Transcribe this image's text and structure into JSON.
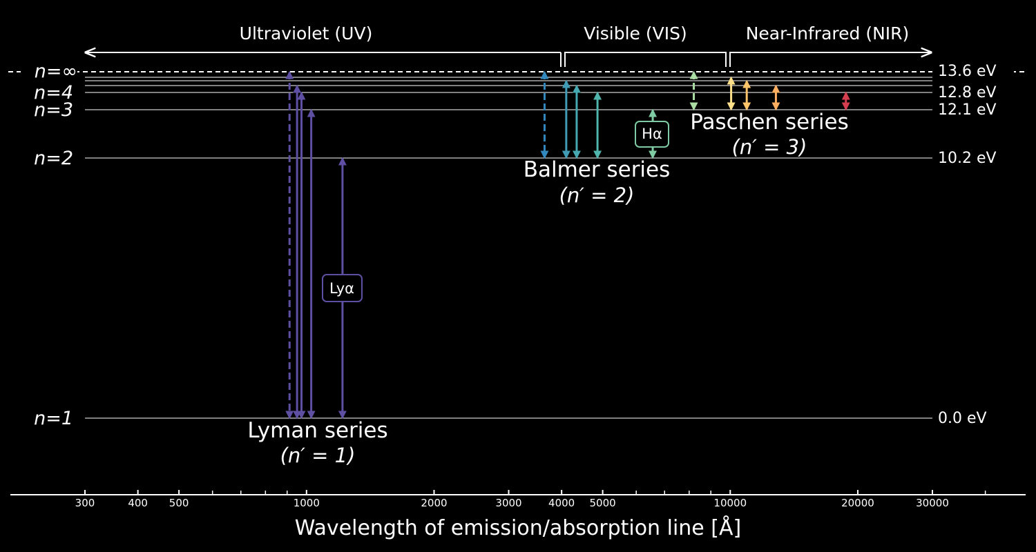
{
  "regions": [
    {
      "label": "Ultraviolet (UV)",
      "from": 300,
      "to": 4000
    },
    {
      "label": "Visible (VIS)",
      "from": 4000,
      "to": 10000
    },
    {
      "label": "Near-Infrared (NIR)",
      "from": 10000,
      "to": 30000
    }
  ],
  "levels": {
    "n_inf": {
      "label": "n=∞",
      "energy": "13.6 eV"
    },
    "n4": {
      "label": "n=4",
      "energy": "12.8 eV"
    },
    "n3": {
      "label": "n=3",
      "energy": "12.1 eV"
    },
    "n2": {
      "label": "n=2",
      "energy": "10.2 eV"
    },
    "n1": {
      "label": "n=1",
      "energy": "0.0 eV"
    }
  },
  "series": {
    "lyman": {
      "name": "Lyman series",
      "sub": "(n′ = 1)"
    },
    "balmer": {
      "name": "Balmer series",
      "sub": "(n′ = 2)"
    },
    "paschen": {
      "name": "Paschen series",
      "sub": "(n′ = 3)"
    }
  },
  "callouts": {
    "ly_alpha": "Lyα",
    "h_alpha": "Hα"
  },
  "axis": {
    "xlabel": "Wavelength of emission/absorption line [Å]",
    "tick_labels": [
      "300",
      "400",
      "500",
      "1000",
      "2000",
      "3000",
      "4000",
      "5000",
      "10000",
      "20000",
      "30000"
    ]
  },
  "chart_data": {
    "type": "energy-level diagram",
    "x_scale": "log",
    "xlim": [
      300,
      30000
    ],
    "lines": [
      {
        "series": "Lyman",
        "wavelength": 912,
        "from_n": "∞",
        "to_n": 1,
        "style": "dashed",
        "color": "#5e4fa2"
      },
      {
        "series": "Lyman",
        "wavelength": 950,
        "from_n": 5,
        "to_n": 1,
        "color": "#5e4fa2"
      },
      {
        "series": "Lyman",
        "wavelength": 973,
        "from_n": 4,
        "to_n": 1,
        "color": "#5e4fa2"
      },
      {
        "series": "Lyman",
        "wavelength": 1026,
        "from_n": 3,
        "to_n": 1,
        "color": "#5e4fa2"
      },
      {
        "series": "Lyman",
        "wavelength": 1216,
        "from_n": 2,
        "to_n": 1,
        "color": "#5e4fa2"
      },
      {
        "series": "Balmer",
        "wavelength": 3646,
        "from_n": "∞",
        "to_n": 2,
        "style": "dashed",
        "color": "#3288bd"
      },
      {
        "series": "Balmer",
        "wavelength": 4102,
        "from_n": 6,
        "to_n": 2,
        "color": "#3f9cb4"
      },
      {
        "series": "Balmer",
        "wavelength": 4341,
        "from_n": 5,
        "to_n": 2,
        "color": "#46a8b0"
      },
      {
        "series": "Balmer",
        "wavelength": 4861,
        "from_n": 4,
        "to_n": 2,
        "color": "#4fb4ac"
      },
      {
        "series": "Balmer",
        "wavelength": 6563,
        "from_n": 3,
        "to_n": 2,
        "color": "#7fcca4"
      },
      {
        "series": "Paschen",
        "wavelength": 8204,
        "from_n": "∞",
        "to_n": 3,
        "style": "dashed",
        "color": "#abdda4"
      },
      {
        "series": "Paschen",
        "wavelength": 10049,
        "from_n": 7,
        "to_n": 3,
        "color": "#fee08b"
      },
      {
        "series": "Paschen",
        "wavelength": 10938,
        "from_n": 6,
        "to_n": 3,
        "color": "#fdc46a"
      },
      {
        "series": "Paschen",
        "wavelength": 12818,
        "from_n": 5,
        "to_n": 3,
        "color": "#fdae61"
      },
      {
        "series": "Paschen",
        "wavelength": 18751,
        "from_n": 4,
        "to_n": 3,
        "color": "#d53e4f"
      }
    ]
  }
}
